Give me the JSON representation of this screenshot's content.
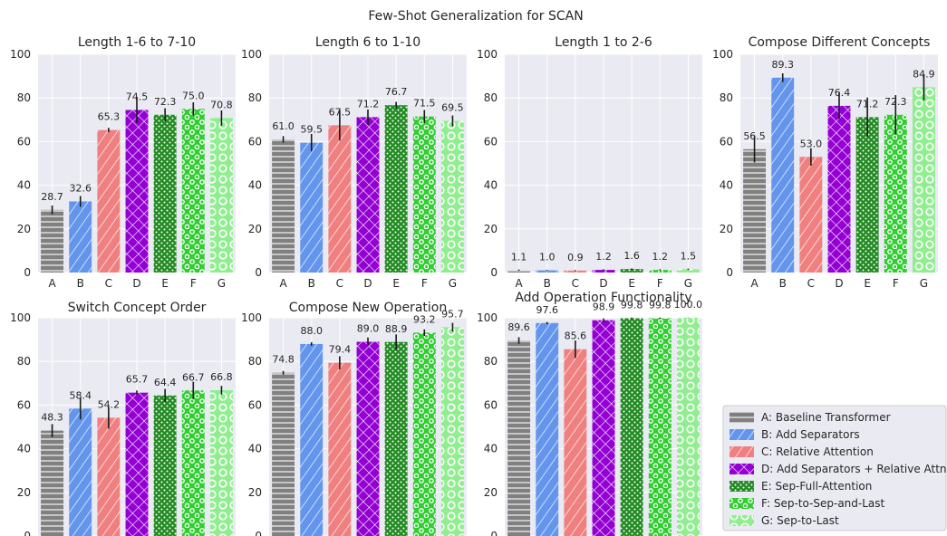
{
  "chart_data": {
    "type": "bar",
    "title": "Few-Shot Generalization for SCAN",
    "categories": [
      "A",
      "B",
      "C",
      "D",
      "E",
      "F",
      "G"
    ],
    "ylim": [
      0,
      100
    ],
    "yticks": [
      0,
      20,
      40,
      60,
      80,
      100
    ],
    "grid": true,
    "legend_placement": "bottom-right",
    "legend": [
      {
        "key": "A",
        "label": "A: Baseline Transformer",
        "color": "#808080",
        "pattern": "horizontal-lines"
      },
      {
        "key": "B",
        "label": "B: Add Separators",
        "color": "#6495ED",
        "pattern": "diagonal-lines"
      },
      {
        "key": "C",
        "label": "C: Relative Attention",
        "color": "#F08080",
        "pattern": "diagonal-lines"
      },
      {
        "key": "D",
        "label": "D: Add Separators + Relative Attn.",
        "color": "#9400D3",
        "pattern": "crosshatch"
      },
      {
        "key": "E",
        "label": "E: Sep-Full-Attention",
        "color": "#228B22",
        "pattern": "small-dots"
      },
      {
        "key": "F",
        "label": "F: Sep-to-Sep-and-Last",
        "color": "#32CD32",
        "pattern": "dots"
      },
      {
        "key": "G",
        "label": "G: Sep-to-Last",
        "color": "#90EE90",
        "pattern": "circles"
      }
    ],
    "subplots": [
      {
        "title": "Length 1-6 to 7-10",
        "values": [
          28.7,
          32.6,
          65.3,
          74.5,
          72.3,
          75.0,
          70.8
        ],
        "err": [
          2.0,
          2.5,
          1.0,
          6.0,
          3.0,
          3.0,
          3.5
        ]
      },
      {
        "title": "Length 6 to 1-10",
        "values": [
          61.0,
          59.5,
          67.5,
          71.2,
          76.7,
          71.5,
          69.5
        ],
        "err": [
          1.5,
          4.0,
          7.0,
          3.5,
          1.5,
          3.0,
          2.5
        ]
      },
      {
        "title": "Length 1 to 2-6",
        "values": [
          1.1,
          1.0,
          0.9,
          1.2,
          1.6,
          1.2,
          1.5
        ],
        "err": [
          0.3,
          0.2,
          0.2,
          0.3,
          0.3,
          0.3,
          0.3
        ]
      },
      {
        "title": "Compose Different Concepts",
        "values": [
          56.5,
          89.3,
          53.0,
          76.4,
          71.2,
          72.3,
          84.9
        ],
        "err": [
          6.0,
          2.0,
          4.0,
          6.0,
          9.0,
          9.0,
          6.0
        ]
      },
      {
        "title": "Switch Concept Order",
        "values": [
          48.3,
          58.4,
          54.2,
          65.7,
          64.4,
          66.7,
          66.8
        ],
        "err": [
          3.0,
          5.0,
          5.0,
          1.0,
          3.0,
          4.0,
          2.0
        ]
      },
      {
        "title": "Compose New Operation",
        "values": [
          74.8,
          88.0,
          79.4,
          89.0,
          88.9,
          93.2,
          95.7
        ],
        "err": [
          0.8,
          0.8,
          3.0,
          2.0,
          3.5,
          1.5,
          2.0
        ]
      },
      {
        "title": "Add Operation Functionality",
        "values": [
          89.6,
          97.6,
          85.6,
          98.9,
          99.8,
          99.8,
          100.0
        ],
        "err": [
          1.5,
          0.5,
          4.0,
          0.8,
          0.3,
          0.3,
          0.1
        ]
      }
    ]
  }
}
